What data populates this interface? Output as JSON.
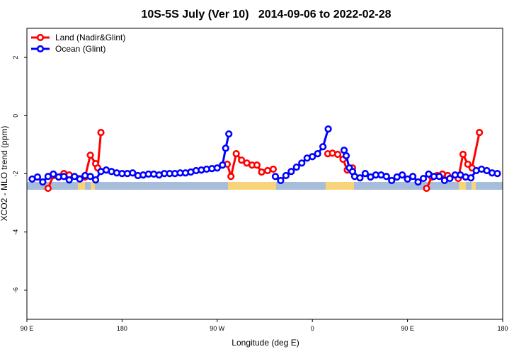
{
  "chart_data": {
    "type": "line",
    "title": "10S-5S July (Ver 10)   2014-09-06 to 2022-02-28",
    "x_label": "Longitude (deg E)",
    "y_label": "XCO2 - MLO trend (ppm)",
    "xlim": [
      90,
      540
    ],
    "ylim": [
      -7,
      3
    ],
    "xticks": [
      {
        "value": 90,
        "label": "90 E"
      },
      180,
      {
        "value": 270,
        "label": "90 W"
      },
      {
        "value": 360,
        "label": "0"
      },
      {
        "value": 450,
        "label": "90 E"
      },
      {
        "value": 540,
        "label": "180"
      }
    ],
    "yticks": [
      -6,
      -4,
      -2,
      0,
      2
    ],
    "legend": "top-left",
    "series": [
      {
        "name": "Land (Nadir&Glint)",
        "color": "#ff0000",
        "x": [
          110,
          115,
          125,
          130,
          145,
          150,
          155,
          157,
          160,
          220,
          279.5,
          283,
          288,
          293,
          298,
          303,
          307.6,
          312,
          317.7,
          323,
          350,
          374.6,
          379,
          384,
          389,
          393,
          398,
          430,
          468,
          473,
          478,
          483,
          488,
          498,
          502.5,
          507,
          511,
          518
        ],
        "values": [
          -2.5,
          -2.06,
          -1.99,
          -2.04,
          -2.11,
          -1.36,
          -1.65,
          -1.8,
          -0.58,
          null,
          -1.67,
          -2.09,
          -1.31,
          -1.53,
          -1.63,
          -1.7,
          -1.7,
          -1.94,
          -1.89,
          -1.84,
          null,
          -1.31,
          -1.29,
          -1.33,
          -1.5,
          -1.87,
          -1.8,
          null,
          -2.5,
          -2.11,
          -2.06,
          -2.01,
          -2.06,
          -2.16,
          -1.33,
          -1.67,
          -1.8,
          -0.58
        ]
      },
      {
        "name": "Ocean (Glint)",
        "color": "#0000ff",
        "x": [
          95,
          100,
          105,
          110,
          115,
          120,
          125,
          130,
          135,
          140,
          145,
          150,
          155,
          160,
          165,
          170,
          175,
          180,
          185,
          190,
          195,
          200,
          205,
          210,
          215,
          220,
          225,
          230,
          235,
          240,
          245,
          250,
          255,
          260,
          265,
          270,
          275,
          278,
          281,
          300,
          325,
          330,
          335,
          340,
          345,
          350,
          355,
          360,
          365,
          370,
          375,
          382,
          390,
          392,
          395,
          398,
          400,
          405,
          410,
          415,
          420,
          425,
          430,
          435,
          440,
          445,
          450,
          455,
          460,
          465,
          470,
          475,
          480,
          485,
          490,
          495,
          500,
          505,
          510,
          515,
          520,
          525,
          530,
          535
        ],
        "values": [
          -2.18,
          -2.11,
          -2.28,
          -2.09,
          -2.01,
          -2.11,
          -2.09,
          -2.21,
          -2.09,
          -2.18,
          -2.06,
          -2.09,
          -2.21,
          -1.92,
          -1.87,
          -1.92,
          -1.97,
          -1.99,
          -1.99,
          -1.97,
          -2.06,
          -2.04,
          -2.01,
          -2.01,
          -2.04,
          -1.99,
          -1.99,
          -1.99,
          -1.97,
          -1.97,
          -1.94,
          -1.89,
          -1.87,
          -1.84,
          -1.82,
          -1.8,
          -1.7,
          -1.12,
          -0.63,
          null,
          -2.09,
          -2.23,
          -2.06,
          -1.92,
          -1.77,
          -1.63,
          -1.46,
          -1.41,
          -1.31,
          -1.07,
          -0.46,
          null,
          -1.19,
          -1.38,
          -1.8,
          -1.92,
          -2.09,
          -2.14,
          -1.99,
          -2.11,
          -2.04,
          -2.04,
          -2.09,
          -2.23,
          -2.11,
          -2.04,
          -2.18,
          -2.09,
          -2.28,
          -2.16,
          -2.01,
          -2.09,
          -2.09,
          -2.23,
          -2.16,
          -2.04,
          -2.04,
          -2.11,
          -2.14,
          -1.89,
          -1.84,
          -1.89,
          -1.97,
          -1.99
        ]
      }
    ]
  }
}
